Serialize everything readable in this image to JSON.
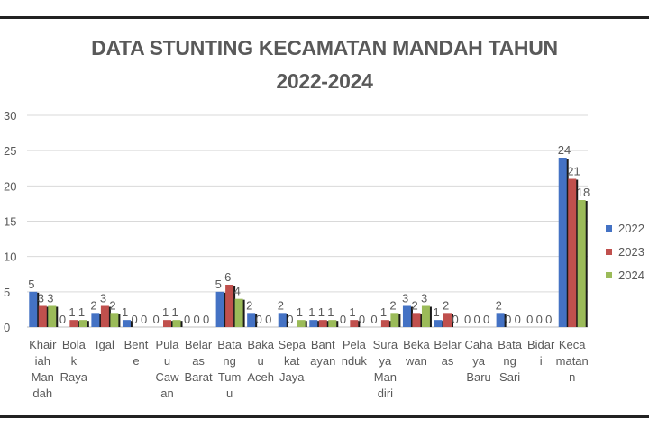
{
  "chart_data": {
    "type": "bar",
    "title_lines": [
      "DATA STUNTING KECAMATAN MANDAH TAHUN",
      "2022-2024"
    ],
    "xlabel": "",
    "ylabel": "",
    "ylim": [
      0,
      30
    ],
    "yticks": [
      "0",
      "5",
      "10",
      "15",
      "20",
      "25",
      "30"
    ],
    "grid": true,
    "legend_position": "right",
    "categories": [
      [
        "Khair",
        "iah",
        "Man",
        "dah"
      ],
      [
        "Bola",
        "k",
        "Raya"
      ],
      [
        "Igal"
      ],
      [
        "Bent",
        "e"
      ],
      [
        "Pula",
        "u",
        "Caw",
        "an"
      ],
      [
        "Belar",
        "as",
        "Barat"
      ],
      [
        "Bata",
        "ng",
        "Tum",
        "u"
      ],
      [
        "Baka",
        "u",
        "Aceh"
      ],
      [
        "Sepa",
        "kat",
        "Jaya"
      ],
      [
        "Bant",
        "ayan"
      ],
      [
        "Pela",
        "nduk"
      ],
      [
        "Sura",
        "ya",
        "Man",
        "diri"
      ],
      [
        "Beka",
        "wan"
      ],
      [
        "Belar",
        "as"
      ],
      [
        "Caha",
        "ya",
        "Baru"
      ],
      [
        "Bata",
        "ng",
        "Sari"
      ],
      [
        "Bidar",
        "i"
      ],
      [
        "Keca",
        "matan",
        "n"
      ]
    ],
    "series": [
      {
        "name": "2022",
        "color": "#4472C4",
        "values": [
          5,
          0,
          2,
          1,
          0,
          0,
          5,
          2,
          2,
          1,
          0,
          0,
          3,
          1,
          0,
          2,
          0,
          24
        ]
      },
      {
        "name": "2023",
        "color": "#C0504D",
        "values": [
          3,
          1,
          3,
          0,
          1,
          0,
          6,
          0,
          0,
          1,
          1,
          1,
          2,
          2,
          0,
          0,
          0,
          21
        ]
      },
      {
        "name": "2024",
        "color": "#9BBB59",
        "values": [
          3,
          1,
          2,
          0,
          1,
          0,
          4,
          0,
          1,
          1,
          0,
          2,
          3,
          0,
          0,
          0,
          0,
          18
        ]
      }
    ]
  }
}
